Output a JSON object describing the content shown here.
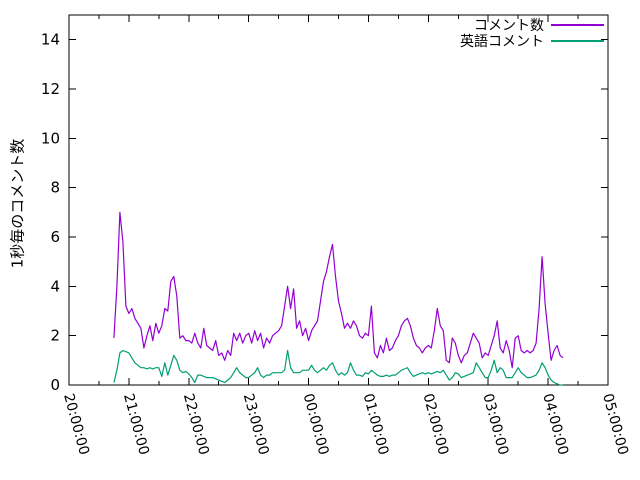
{
  "chart_data": {
    "type": "line",
    "title": "",
    "xlabel": "",
    "ylabel": "1秒毎のコメント数",
    "x_tick_labels": [
      "20:00:00",
      "21:00:00",
      "22:00:00",
      "23:00:00",
      "00:00:00",
      "01:00:00",
      "02:00:00",
      "03:00:00",
      "04:00:00",
      "05:00:00"
    ],
    "y_ticks": [
      0,
      2,
      4,
      6,
      8,
      10,
      12,
      14
    ],
    "ylim": [
      0,
      15
    ],
    "xlim_hours": [
      20,
      29
    ],
    "grid": false,
    "legend_position": "top-right-inside",
    "axis_color": "#000000",
    "background": "#ffffff",
    "x": [
      "20:45",
      "20:48",
      "20:51",
      "20:54",
      "20:57",
      "21:00",
      "21:03",
      "21:06",
      "21:09",
      "21:12",
      "21:15",
      "21:18",
      "21:21",
      "21:24",
      "21:27",
      "21:30",
      "21:33",
      "21:36",
      "21:39",
      "21:42",
      "21:45",
      "21:48",
      "21:51",
      "21:54",
      "21:57",
      "22:00",
      "22:03",
      "22:06",
      "22:09",
      "22:12",
      "22:15",
      "22:18",
      "22:21",
      "22:24",
      "22:27",
      "22:30",
      "22:33",
      "22:36",
      "22:39",
      "22:42",
      "22:45",
      "22:48",
      "22:51",
      "22:54",
      "22:57",
      "23:00",
      "23:03",
      "23:06",
      "23:09",
      "23:12",
      "23:15",
      "23:18",
      "23:21",
      "23:24",
      "23:27",
      "23:30",
      "23:33",
      "23:36",
      "23:39",
      "23:42",
      "23:45",
      "23:48",
      "23:51",
      "23:54",
      "23:57",
      "00:00",
      "00:03",
      "00:06",
      "00:09",
      "00:12",
      "00:15",
      "00:18",
      "00:21",
      "00:24",
      "00:27",
      "00:30",
      "00:33",
      "00:36",
      "00:39",
      "00:42",
      "00:45",
      "00:48",
      "00:51",
      "00:54",
      "00:57",
      "01:00",
      "01:03",
      "01:06",
      "01:09",
      "01:12",
      "01:15",
      "01:18",
      "01:21",
      "01:24",
      "01:27",
      "01:30",
      "01:33",
      "01:36",
      "01:39",
      "01:42",
      "01:45",
      "01:48",
      "01:51",
      "01:54",
      "01:57",
      "02:00",
      "02:03",
      "02:06",
      "02:09",
      "02:12",
      "02:15",
      "02:18",
      "02:21",
      "02:24",
      "02:27",
      "02:30",
      "02:33",
      "02:36",
      "02:39",
      "02:42",
      "02:45",
      "02:48",
      "02:51",
      "02:54",
      "02:57",
      "03:00",
      "03:03",
      "03:06",
      "03:09",
      "03:12",
      "03:15",
      "03:18",
      "03:21",
      "03:24",
      "03:27",
      "03:30",
      "03:33",
      "03:36",
      "03:39",
      "03:42",
      "03:45",
      "03:48",
      "03:51",
      "03:54",
      "03:57",
      "04:00",
      "04:03",
      "04:06",
      "04:09",
      "04:12",
      "04:15"
    ],
    "series": [
      {
        "name": "コメント数",
        "color": "#9400d3",
        "values": [
          1.9,
          4.0,
          7.0,
          5.8,
          3.2,
          2.9,
          3.1,
          2.7,
          2.5,
          2.3,
          1.5,
          2.0,
          2.4,
          1.8,
          2.5,
          2.1,
          2.4,
          3.1,
          3.0,
          4.2,
          4.4,
          3.6,
          1.9,
          2.0,
          1.8,
          1.8,
          1.7,
          2.1,
          1.7,
          1.5,
          2.3,
          1.6,
          1.5,
          1.4,
          1.8,
          1.2,
          1.3,
          1.0,
          1.4,
          1.2,
          2.1,
          1.8,
          2.1,
          1.7,
          2.0,
          2.1,
          1.7,
          2.2,
          1.8,
          2.1,
          1.5,
          1.9,
          1.7,
          2.0,
          2.1,
          2.2,
          2.4,
          3.2,
          4.0,
          3.1,
          3.9,
          2.3,
          2.6,
          2.0,
          2.3,
          1.8,
          2.2,
          2.4,
          2.6,
          3.4,
          4.2,
          4.6,
          5.2,
          5.7,
          4.4,
          3.4,
          2.9,
          2.3,
          2.5,
          2.3,
          2.6,
          2.4,
          2.0,
          1.9,
          2.1,
          2.0,
          3.2,
          1.3,
          1.1,
          1.6,
          1.3,
          1.9,
          1.4,
          1.5,
          1.8,
          2.0,
          2.4,
          2.6,
          2.7,
          2.4,
          1.9,
          1.6,
          1.5,
          1.3,
          1.5,
          1.6,
          1.5,
          2.2,
          3.1,
          2.4,
          2.2,
          1.0,
          0.9,
          1.9,
          1.7,
          1.2,
          0.9,
          1.2,
          1.3,
          1.7,
          2.1,
          1.9,
          1.7,
          1.1,
          1.3,
          1.2,
          1.6,
          2.0,
          2.6,
          1.5,
          1.3,
          1.8,
          1.4,
          0.7,
          1.9,
          2.0,
          1.4,
          1.3,
          1.4,
          1.3,
          1.4,
          1.7,
          3.1,
          5.2,
          3.3,
          2.1,
          1.0,
          1.4,
          1.6,
          1.2,
          1.1
        ]
      },
      {
        "name": "英語コメント",
        "color": "#009e73",
        "values": [
          0.1,
          0.6,
          1.3,
          1.4,
          1.35,
          1.3,
          1.1,
          0.9,
          0.8,
          0.7,
          0.7,
          0.65,
          0.7,
          0.65,
          0.7,
          0.7,
          0.35,
          0.9,
          0.4,
          0.8,
          1.2,
          1.0,
          0.6,
          0.5,
          0.55,
          0.45,
          0.3,
          0.1,
          0.4,
          0.4,
          0.35,
          0.3,
          0.3,
          0.3,
          0.25,
          0.2,
          0.15,
          0.1,
          0.2,
          0.3,
          0.5,
          0.7,
          0.5,
          0.4,
          0.3,
          0.3,
          0.4,
          0.5,
          0.7,
          0.4,
          0.3,
          0.4,
          0.4,
          0.5,
          0.5,
          0.5,
          0.5,
          0.6,
          1.4,
          0.7,
          0.5,
          0.5,
          0.5,
          0.6,
          0.6,
          0.6,
          0.8,
          0.6,
          0.5,
          0.6,
          0.7,
          0.6,
          0.8,
          0.9,
          0.6,
          0.4,
          0.5,
          0.4,
          0.5,
          0.9,
          0.6,
          0.4,
          0.4,
          0.35,
          0.5,
          0.45,
          0.6,
          0.5,
          0.4,
          0.35,
          0.35,
          0.4,
          0.35,
          0.4,
          0.4,
          0.5,
          0.6,
          0.65,
          0.7,
          0.5,
          0.35,
          0.4,
          0.45,
          0.5,
          0.45,
          0.5,
          0.45,
          0.5,
          0.55,
          0.5,
          0.6,
          0.4,
          0.2,
          0.3,
          0.5,
          0.45,
          0.3,
          0.35,
          0.4,
          0.45,
          0.5,
          0.9,
          0.7,
          0.5,
          0.3,
          0.3,
          0.6,
          1.0,
          0.5,
          0.7,
          0.6,
          0.3,
          0.3,
          0.3,
          0.5,
          0.7,
          0.5,
          0.4,
          0.3,
          0.3,
          0.35,
          0.4,
          0.6,
          0.9,
          0.7,
          0.4,
          0.2,
          0.1,
          0.05,
          0.0,
          0.0
        ]
      }
    ]
  }
}
